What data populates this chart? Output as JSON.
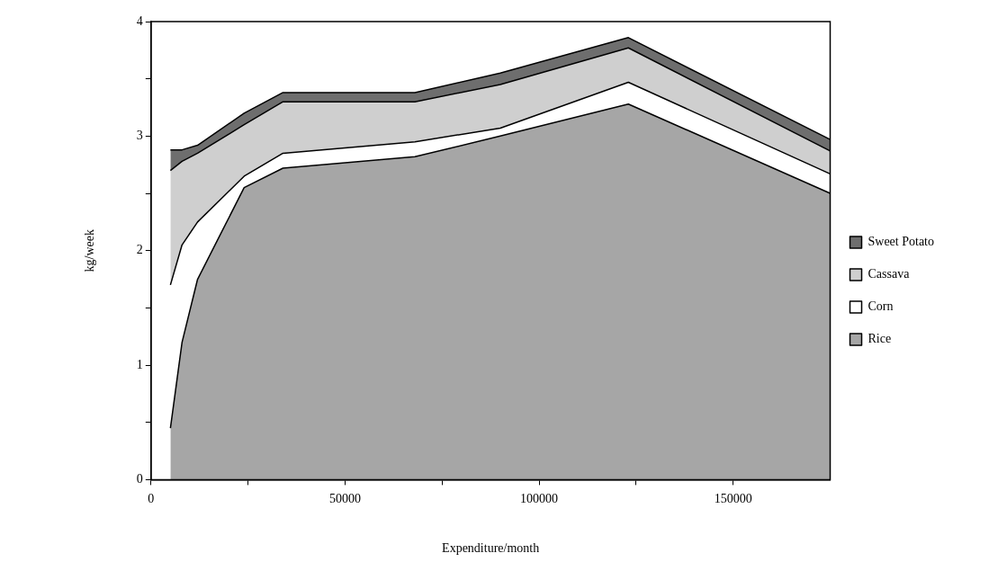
{
  "chart_data": {
    "type": "area",
    "stacked": true,
    "xlabel": "Expenditure/month",
    "ylabel": "kg/week",
    "x": [
      5000,
      8000,
      12000,
      24000,
      34000,
      68000,
      90000,
      123000,
      175000
    ],
    "series": [
      {
        "name": "Rice",
        "color": "#a6a6a6",
        "values": [
          0.45,
          1.2,
          1.75,
          2.55,
          2.72,
          2.82,
          3.0,
          3.28,
          2.5
        ]
      },
      {
        "name": "Corn",
        "color": "#ffffff",
        "values": [
          1.25,
          0.85,
          0.5,
          0.1,
          0.13,
          0.13,
          0.07,
          0.19,
          0.17
        ]
      },
      {
        "name": "Cassava",
        "color": "#cfcfcf",
        "values": [
          1.0,
          0.73,
          0.6,
          0.45,
          0.45,
          0.35,
          0.38,
          0.3,
          0.2
        ]
      },
      {
        "name": "Sweet Potato",
        "color": "#6e6e6e",
        "values": [
          0.18,
          0.1,
          0.07,
          0.1,
          0.08,
          0.08,
          0.1,
          0.09,
          0.1
        ]
      }
    ],
    "xlim": [
      0,
      175000
    ],
    "xticks": [
      0,
      {
        "value": 25000,
        "label": null
      },
      50000,
      {
        "value": 75000,
        "label": null
      },
      100000,
      {
        "value": 125000,
        "label": null
      },
      150000
    ],
    "ylim": [
      0,
      4
    ],
    "yticks": [
      0,
      {
        "value": 0.5,
        "label": null
      },
      1,
      {
        "value": 1.5,
        "label": null
      },
      2,
      {
        "value": 2.5,
        "label": null
      },
      3,
      {
        "value": 3.5,
        "label": null
      },
      4
    ],
    "grid": false,
    "legend": "right"
  }
}
